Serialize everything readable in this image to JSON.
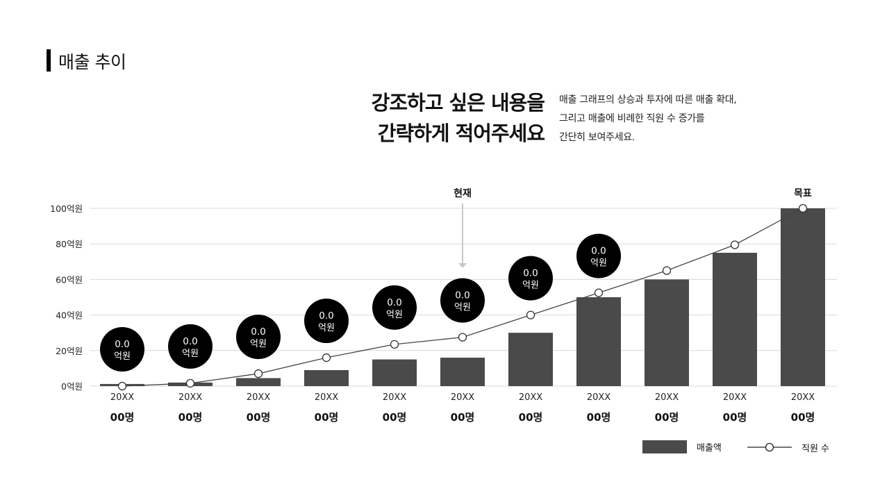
{
  "header": {
    "title": "매출 추이",
    "headline": [
      "강조하고 싶은 내용을",
      "간략하게 적어주세요"
    ],
    "description": [
      "매출 그래프의 상승과 투자에 따른 매출 확대,",
      "그리고 매출에 비례한 직원 수 증가를",
      "간단히 보여주세요."
    ]
  },
  "chart_data": {
    "type": "bar",
    "categories": [
      "20XX",
      "20XX",
      "20XX",
      "20XX",
      "20XX",
      "20XX",
      "20XX",
      "20XX",
      "20XX",
      "20XX",
      "20XX"
    ],
    "employee_labels": [
      "00명",
      "00명",
      "00명",
      "00명",
      "00명",
      "00명",
      "00명",
      "00명",
      "00명",
      "00명",
      "00명"
    ],
    "yticks": [
      0,
      20,
      40,
      60,
      80,
      100
    ],
    "ytick_labels": [
      "0억원",
      "20억원",
      "40억원",
      "60억원",
      "80억원",
      "100억원"
    ],
    "ylim": [
      0,
      100
    ],
    "grid": true,
    "series": [
      {
        "name": "매출액",
        "type": "bar",
        "color": "#4a4a4a",
        "values": [
          1.2,
          2,
          4.5,
          9,
          15,
          16,
          30,
          50,
          60,
          75,
          100
        ]
      },
      {
        "name": "직원 수",
        "type": "line",
        "color": "#444444",
        "values": [
          0,
          1.6,
          7,
          16,
          23.5,
          27.5,
          40,
          52.5,
          65,
          79.5,
          100
        ]
      }
    ],
    "bubble_labels": [
      {
        "value": "0.0",
        "unit": "억원"
      },
      {
        "value": "0.0",
        "unit": "억원"
      },
      {
        "value": "0.0",
        "unit": "억원"
      },
      {
        "value": "0.0",
        "unit": "억원"
      },
      {
        "value": "0.0",
        "unit": "억원"
      },
      {
        "value": "0.0",
        "unit": "억원"
      },
      {
        "value": "0.0",
        "unit": "억원"
      },
      {
        "value": "0.0",
        "unit": "억원"
      }
    ],
    "annotations": [
      {
        "text": "현재",
        "category_index": 5,
        "arrow": true
      },
      {
        "text": "목표",
        "category_index": 10,
        "arrow": false
      }
    ],
    "legend_position": "bottom-right"
  }
}
